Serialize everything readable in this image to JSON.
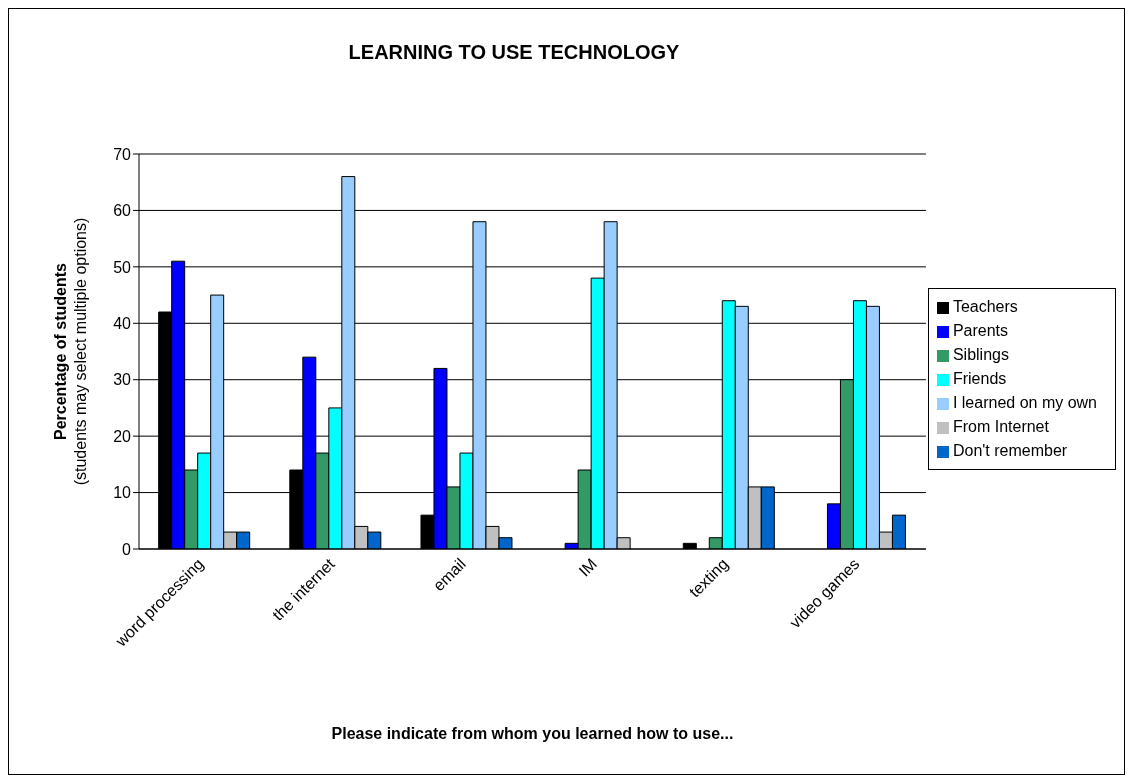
{
  "chart_data": {
    "type": "bar",
    "title": "LEARNING TO USE TECHNOLOGY",
    "xlabel": "Please indicate from whom you learned how to use...",
    "ylabel": "Percentage of students\n(students may select multiple options)",
    "categories": [
      "word processing",
      "the internet",
      "email",
      "IM",
      "texting",
      "video games"
    ],
    "series": [
      {
        "name": "Teachers",
        "color": "#000000",
        "values": [
          42,
          14,
          6,
          0,
          1,
          0
        ]
      },
      {
        "name": "Parents",
        "color": "#0000ff",
        "values": [
          51,
          34,
          32,
          1,
          0,
          8
        ]
      },
      {
        "name": "Siblings",
        "color": "#339966",
        "values": [
          14,
          17,
          11,
          14,
          2,
          30
        ]
      },
      {
        "name": "Friends",
        "color": "#00ffff",
        "values": [
          17,
          25,
          17,
          48,
          44,
          44
        ]
      },
      {
        "name": "I learned on my own",
        "color": "#99ccff",
        "values": [
          45,
          66,
          58,
          58,
          43,
          43
        ]
      },
      {
        "name": "From Internet",
        "color": "#c0c0c0",
        "values": [
          3,
          4,
          4,
          2,
          11,
          3
        ]
      },
      {
        "name": "Don't remember",
        "color": "#0066cc",
        "values": [
          3,
          3,
          2,
          0,
          11,
          6
        ]
      }
    ],
    "ylim": [
      0,
      70
    ],
    "yticks": [
      0,
      10,
      20,
      30,
      40,
      50,
      60,
      70
    ],
    "grid": "y",
    "legend": "right"
  }
}
